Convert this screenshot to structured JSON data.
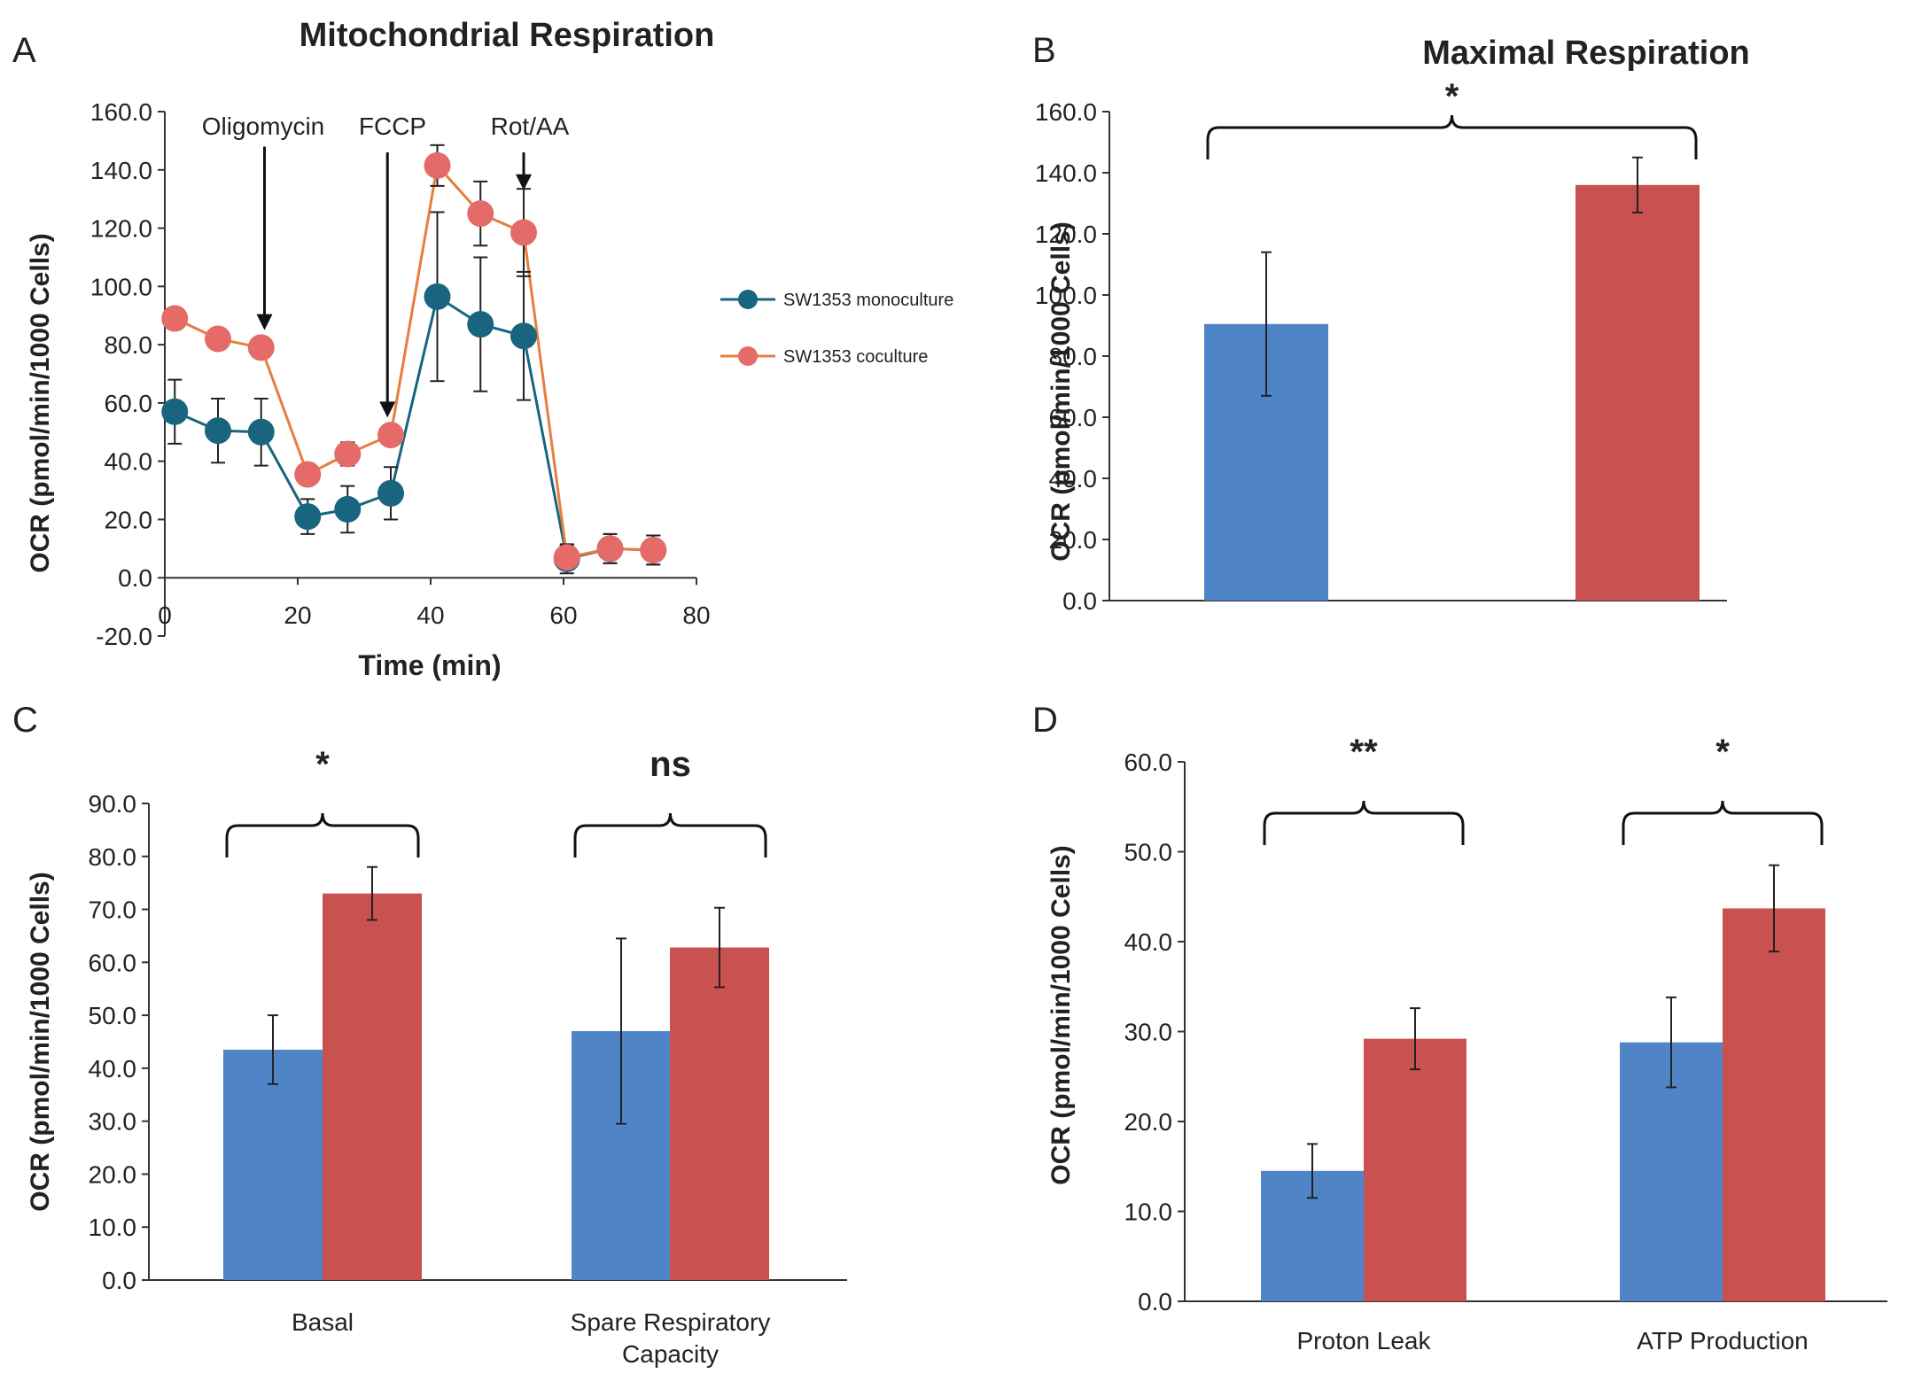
{
  "colors": {
    "monoculture": "#4f84c6",
    "coculture": "#c9514f",
    "line_mono": "#19647e",
    "line_co": "#e67e3d",
    "marker_co": "#e46b68",
    "axis": "#333333"
  },
  "chart_data": [
    {
      "panel": "A",
      "type": "line",
      "title": "Mitochondrial Respiration",
      "xlabel": "Time (min)",
      "ylabel": "OCR (pmol/min/1000 Cells)",
      "xlim": [
        0,
        80
      ],
      "ylim": [
        -20,
        160
      ],
      "xticks": [
        0,
        20,
        40,
        60,
        80
      ],
      "yticks": [
        -20,
        0,
        20,
        40,
        60,
        80,
        100,
        120,
        140,
        160
      ],
      "ytick_labels": [
        "-20.0",
        "0.0",
        "20.0",
        "40.0",
        "60.0",
        "80.0",
        "100.0",
        "120.0",
        "140.0",
        "160.0"
      ],
      "x": [
        1.5,
        8,
        14.5,
        21.5,
        27.5,
        34,
        41,
        47.5,
        54,
        60.5,
        67,
        73.5
      ],
      "series": [
        {
          "name": "SW1353 monoculture",
          "values": [
            57,
            50.5,
            50,
            21,
            23.5,
            29,
            96.5,
            87,
            83,
            6.5,
            10,
            9.5
          ],
          "errors": [
            11,
            11,
            11.5,
            6,
            8,
            9,
            29,
            23,
            22,
            5,
            5,
            5
          ]
        },
        {
          "name": "SW1353 coculture",
          "values": [
            89,
            82,
            79,
            35.5,
            42.5,
            49,
            141.5,
            125,
            118.5,
            7,
            10,
            9.5
          ],
          "errors": [
            0,
            0,
            0,
            0,
            4,
            0,
            7,
            11,
            15,
            4,
            5,
            5
          ]
        }
      ],
      "annotations": [
        {
          "label": "Oligomycin",
          "x": 15,
          "y_from": 148,
          "y_to": 85
        },
        {
          "label": "FCCP",
          "x": 33.5,
          "y_from": 146,
          "y_to": 55
        },
        {
          "label": "Rot/AA",
          "x": 54,
          "y_from": 146,
          "y_to": 133
        }
      ]
    },
    {
      "panel": "B",
      "type": "bar",
      "title": "Maximal Respiration",
      "xlabel": "",
      "ylabel": "OCR (pmol/min/1000 Cells)",
      "ylim": [
        0,
        160
      ],
      "yticks": [
        0,
        20,
        40,
        60,
        80,
        100,
        120,
        140,
        160
      ],
      "ytick_labels": [
        "0.0",
        "20.0",
        "40.0",
        "60.0",
        "80.0",
        "100.0",
        "120.0",
        "140.0",
        "160.0"
      ],
      "categories": [
        ""
      ],
      "series": [
        {
          "name": "SW1353 monoculture",
          "values": [
            90.5
          ],
          "errors": [
            23.5
          ]
        },
        {
          "name": "SW1353 coculture",
          "values": [
            136
          ],
          "errors": [
            9
          ]
        }
      ],
      "significance": [
        "*"
      ]
    },
    {
      "panel": "C",
      "type": "bar",
      "title": "",
      "xlabel": "",
      "ylabel": "OCR (pmol/min/1000 Cells)",
      "ylim": [
        0,
        90
      ],
      "yticks": [
        0,
        10,
        20,
        30,
        40,
        50,
        60,
        70,
        80,
        90
      ],
      "ytick_labels": [
        "0.0",
        "10.0",
        "20.0",
        "30.0",
        "40.0",
        "50.0",
        "60.0",
        "70.0",
        "80.0",
        "90.0"
      ],
      "categories": [
        "Basal",
        "Spare Respiratory Capacity"
      ],
      "category_lines": [
        [
          "Basal"
        ],
        [
          "Spare Respiratory",
          "Capacity"
        ]
      ],
      "series": [
        {
          "name": "SW1353 monoculture",
          "values": [
            43.5,
            47
          ],
          "errors": [
            6.5,
            17.5
          ]
        },
        {
          "name": "SW1353 coculture",
          "values": [
            73,
            62.8
          ],
          "errors": [
            5,
            7.5
          ]
        }
      ],
      "significance": [
        "*",
        "ns"
      ]
    },
    {
      "panel": "D",
      "type": "bar",
      "title": "",
      "xlabel": "",
      "ylabel": "OCR (pmol/min/1000 Cells)",
      "ylim": [
        0,
        60
      ],
      "yticks": [
        0,
        10,
        20,
        30,
        40,
        50,
        60
      ],
      "ytick_labels": [
        "0.0",
        "10.0",
        "20.0",
        "30.0",
        "40.0",
        "50.0",
        "60.0"
      ],
      "categories": [
        "Proton Leak",
        "ATP Production"
      ],
      "category_lines": [
        [
          "Proton Leak"
        ],
        [
          "ATP Production"
        ]
      ],
      "series": [
        {
          "name": "SW1353 monoculture",
          "values": [
            14.5,
            28.8
          ],
          "errors": [
            3,
            5
          ]
        },
        {
          "name": "SW1353 coculture",
          "values": [
            29.2,
            43.7
          ],
          "errors": [
            3.4,
            4.8
          ]
        }
      ],
      "significance": [
        "**",
        "*"
      ]
    }
  ]
}
